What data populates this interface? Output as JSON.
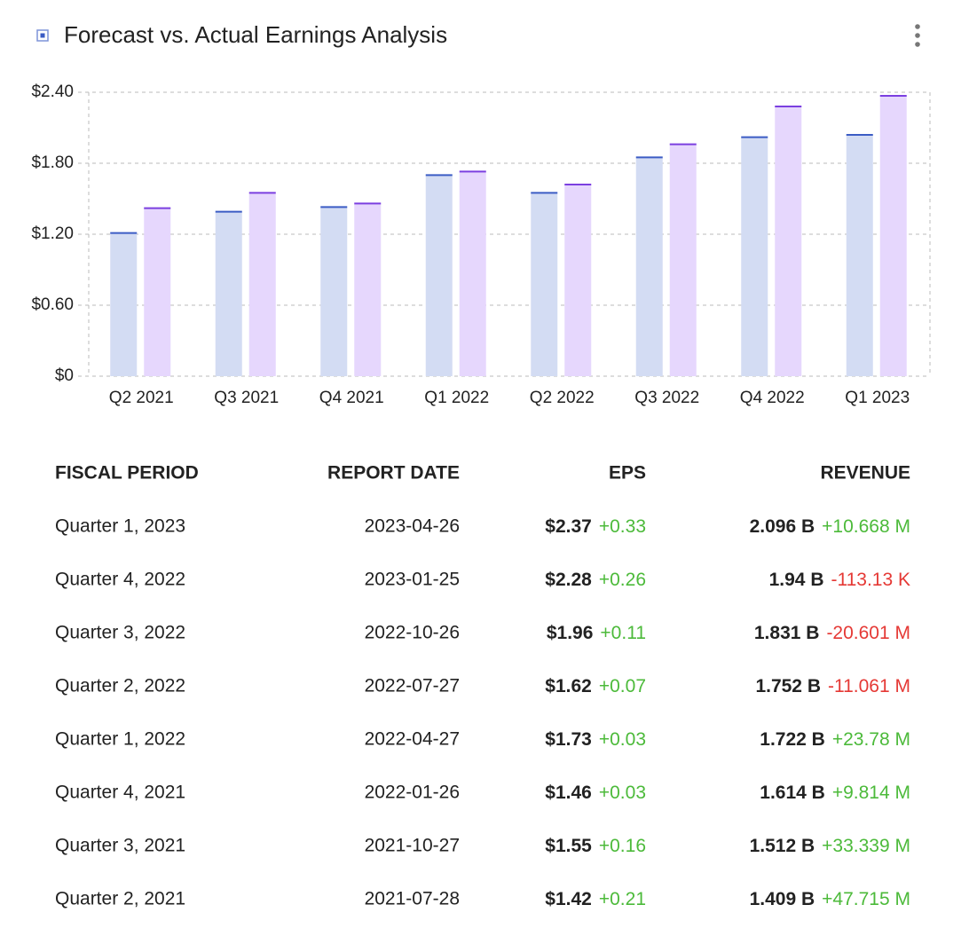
{
  "chart_data": {
    "type": "bar",
    "title": "Forecast vs. Actual Earnings Analysis",
    "categories": [
      "Q2 2021",
      "Q3 2021",
      "Q4 2021",
      "Q1 2022",
      "Q2 2022",
      "Q3 2022",
      "Q4 2022",
      "Q1 2023"
    ],
    "series": [
      {
        "color": "#d3dcf3",
        "cap": "#3b5cc4",
        "values": [
          1.21,
          1.39,
          1.43,
          1.7,
          1.55,
          1.85,
          2.02,
          2.04
        ]
      },
      {
        "color": "#e6d7fd",
        "cap": "#7b3fe0",
        "values": [
          1.42,
          1.55,
          1.46,
          1.73,
          1.62,
          1.96,
          2.28,
          2.37
        ]
      }
    ],
    "ylim": [
      0,
      2.4
    ],
    "yticks": [
      {
        "value": 0,
        "label": "$0"
      },
      {
        "value": 0.6,
        "label": "$0.60"
      },
      {
        "value": 1.2,
        "label": "$1.20"
      },
      {
        "value": 1.8,
        "label": "$1.80"
      },
      {
        "value": 2.4,
        "label": "$2.40"
      }
    ],
    "grid": true
  },
  "table": {
    "columns": [
      "FISCAL PERIOD",
      "REPORT DATE",
      "EPS",
      "REVENUE"
    ],
    "rows": [
      [
        "Quarter 1, 2023",
        "2023-04-26",
        "$2.37",
        "+0.33",
        "2.096 B",
        "+10.668 M"
      ],
      [
        "Quarter 4, 2022",
        "2023-01-25",
        "$2.28",
        "+0.26",
        "1.94 B",
        "-113.13 K"
      ],
      [
        "Quarter 3, 2022",
        "2022-10-26",
        "$1.96",
        "+0.11",
        "1.831 B",
        "-20.601 M"
      ],
      [
        "Quarter 2, 2022",
        "2022-07-27",
        "$1.62",
        "+0.07",
        "1.752 B",
        "-11.061 M"
      ],
      [
        "Quarter 1, 2022",
        "2022-04-27",
        "$1.73",
        "+0.03",
        "1.722 B",
        "+23.78 M"
      ],
      [
        "Quarter 4, 2021",
        "2022-01-26",
        "$1.46",
        "+0.03",
        "1.614 B",
        "+9.814 M"
      ],
      [
        "Quarter 3, 2021",
        "2021-10-27",
        "$1.55",
        "+0.16",
        "1.512 B",
        "+33.339 M"
      ],
      [
        "Quarter 2, 2021",
        "2021-07-28",
        "$1.42",
        "+0.21",
        "1.409 B",
        "+47.715 M"
      ]
    ]
  }
}
